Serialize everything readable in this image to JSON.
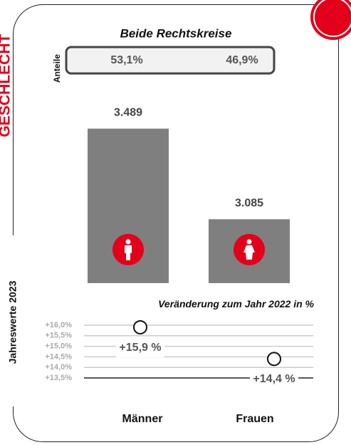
{
  "chart_data": [
    {
      "type": "bar",
      "title": "Beide Rechtskreise",
      "categories": [
        "Männer",
        "Frauen"
      ],
      "values": [
        3489,
        3085
      ],
      "value_labels": [
        "3.489",
        "3.085"
      ],
      "color": "#7f7f7f",
      "ylim": [
        2800,
        3600
      ],
      "shares": {
        "label": "Anteile",
        "values": [
          53.1,
          46.9
        ],
        "value_labels": [
          "53,1%",
          "46,9%"
        ]
      },
      "side_label": "Jahreswerte 2023",
      "section_label": "GESCHLECHT"
    },
    {
      "type": "dot",
      "title": "Veränderung zum Jahr 2022 in %",
      "values": [
        15.9,
        14.4
      ],
      "value_labels": [
        "+15,9 %",
        "+14,4 %"
      ],
      "ylim": [
        13.5,
        16.0
      ],
      "yticks": [
        {
          "value": 16.0,
          "label": "+16,0%"
        },
        {
          "value": 15.5,
          "label": "+15,5%"
        },
        {
          "value": 15.0,
          "label": "+15,0%"
        },
        {
          "value": 14.5,
          "label": "+14,5%"
        },
        {
          "value": 14.0,
          "label": "+14,0%"
        },
        {
          "value": 13.5,
          "label": "+13,5%"
        }
      ],
      "grid": true
    }
  ]
}
